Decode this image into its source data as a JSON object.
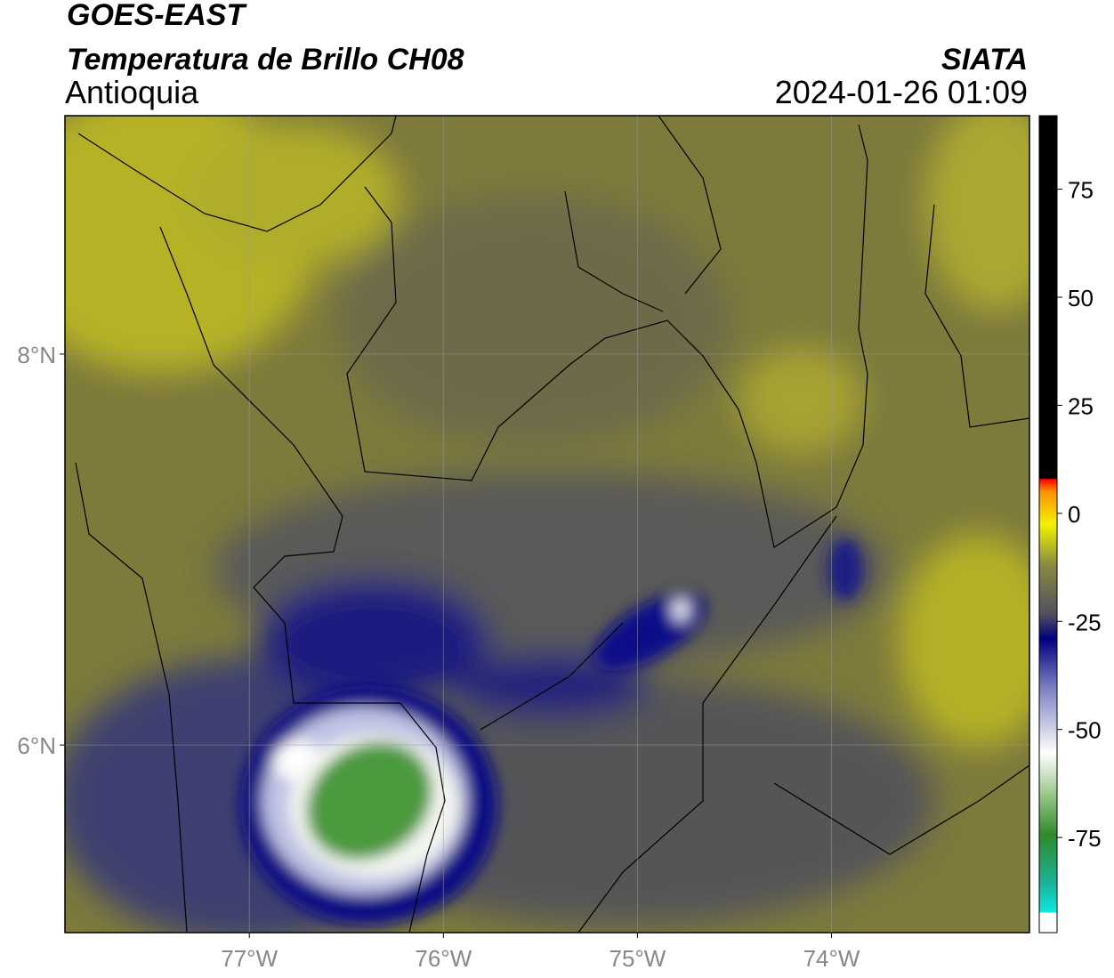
{
  "header": {
    "title": "GOES-EAST",
    "subtitle": "Temperatura de Brillo CH08",
    "region": "Antioquia",
    "source": "SIATA",
    "datetime": "2024-01-26 01:09"
  },
  "map": {
    "xlim": [
      -77.95,
      -72.98
    ],
    "ylim": [
      5.04,
      9.22
    ],
    "xticks": [
      {
        "value": -77,
        "label": "77°W"
      },
      {
        "value": -76,
        "label": "76°W"
      },
      {
        "value": -75,
        "label": "75°W"
      },
      {
        "value": -74,
        "label": "74°W"
      }
    ],
    "yticks": [
      {
        "value": 8,
        "label": "8°N"
      },
      {
        "value": 6,
        "label": "6°N"
      }
    ],
    "grid": true
  },
  "colorbar": {
    "lim": [
      -97,
      92
    ],
    "ticks": [
      75,
      50,
      25,
      0,
      -25,
      -50,
      -75
    ]
  }
}
